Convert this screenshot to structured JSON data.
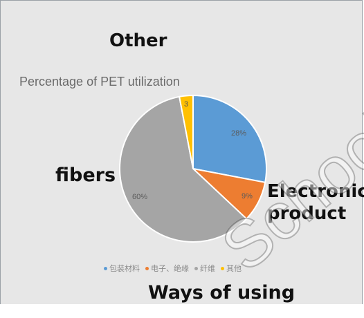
{
  "overlay": {
    "other": "Other",
    "fibers": "fibers",
    "electronic_line1": "Electronic",
    "electronic_line2": "product",
    "ways_of_using": "Ways of using"
  },
  "watermark": "School S",
  "chart_data": {
    "type": "pie",
    "title": "",
    "subtitle": "Percentage of PET utilization",
    "categories": [
      "包装材料",
      "电子、绝缘",
      "纤维",
      "其他"
    ],
    "values": [
      28,
      9,
      60,
      3
    ],
    "labels": [
      "28%",
      "9%",
      "60%",
      "3"
    ],
    "colors": [
      "#5b9bd5",
      "#ed7d31",
      "#a5a5a5",
      "#ffc000"
    ],
    "legend_position": "bottom"
  }
}
